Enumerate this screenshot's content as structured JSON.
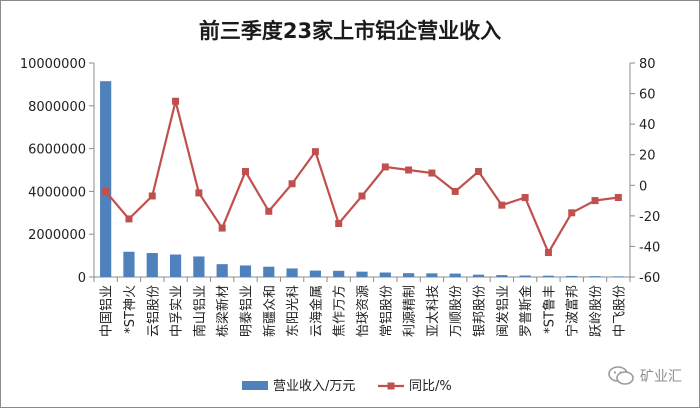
{
  "chart_data": {
    "type": "bar+line",
    "title": "前三季度23家上市铝企营业收入",
    "categories": [
      "中国铝业",
      "*ST神火",
      "云铝股份",
      "中孚实业",
      "南山铝业",
      "栋梁新材",
      "明泰铝业",
      "新疆众和",
      "东阳光科",
      "云海金属",
      "焦作万方",
      "怡球资源",
      "常铝股份",
      "利源精制",
      "亚太科技",
      "万顺股份",
      "银邦股份",
      "闽发铝业",
      "罗普斯金",
      "*ST鲁丰",
      "宁波富邦",
      "跃岭股份",
      "中飞股份"
    ],
    "series": [
      {
        "name": "营业收入/万元",
        "type": "bar",
        "axis": "left",
        "color": "#4f81bd",
        "values": [
          9150000,
          1180000,
          1120000,
          1050000,
          960000,
          600000,
          540000,
          480000,
          400000,
          300000,
          290000,
          250000,
          210000,
          180000,
          170000,
          160000,
          110000,
          90000,
          70000,
          60000,
          50000,
          40000,
          30000
        ]
      },
      {
        "name": "同比/%",
        "type": "line",
        "axis": "right",
        "color": "#c0504d",
        "values": [
          -4,
          -22,
          -7,
          55,
          -5,
          -28,
          9,
          -17,
          1,
          22,
          -25,
          -7,
          12,
          10,
          8,
          -4,
          9,
          -13,
          -8,
          -44,
          -18,
          -10,
          -8
        ]
      }
    ],
    "y_left": {
      "min": 0,
      "max": 10000000,
      "ticks": [
        0,
        2000000,
        4000000,
        6000000,
        8000000,
        10000000
      ]
    },
    "y_right": {
      "min": -60,
      "max": 80,
      "ticks": [
        -60,
        -40,
        -20,
        0,
        20,
        40,
        60,
        80
      ]
    },
    "legend_position": "bottom",
    "grid": false
  },
  "watermark": {
    "text": "矿业汇"
  }
}
